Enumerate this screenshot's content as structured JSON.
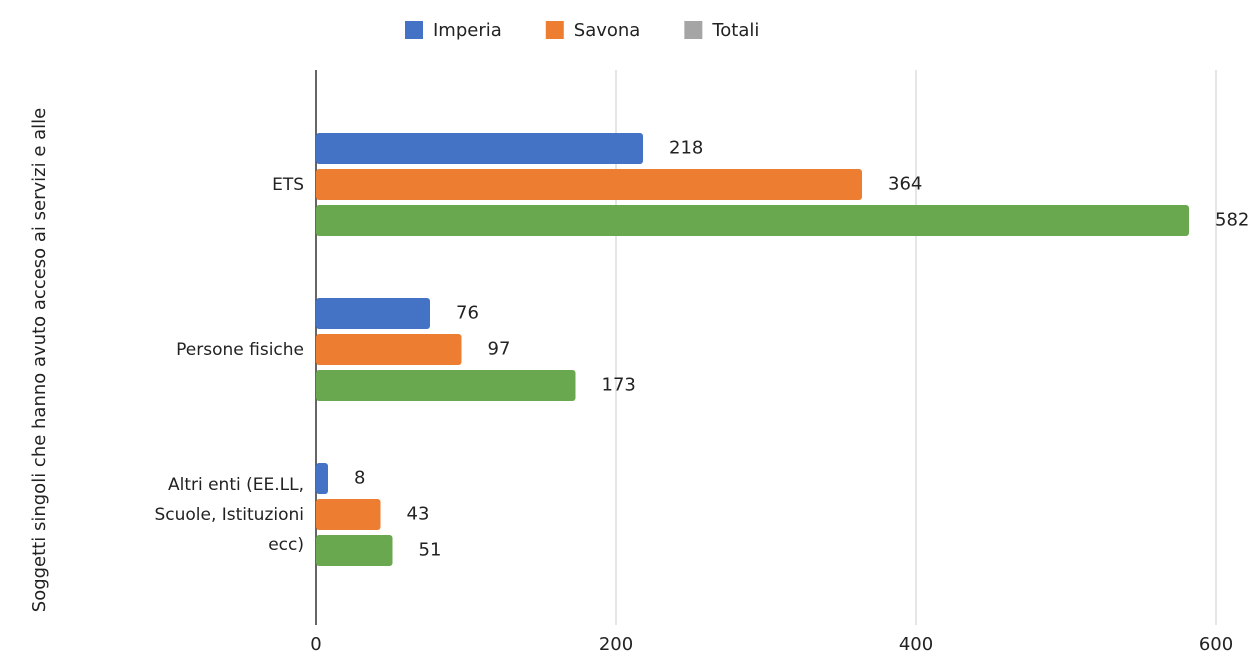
{
  "chart_data": {
    "type": "hbar",
    "y_axis_label": "Soggetti singoli che hanno avuto acceso ai servizi e alle",
    "categories": [
      "ETS",
      "Persone fisiche",
      "Altri enti (EE.LL, Scuole, Istituzioni ecc)"
    ],
    "series": [
      {
        "name": "Imperia",
        "color": "#4472c4",
        "values": [
          218,
          76,
          8
        ]
      },
      {
        "name": "Savona",
        "color": "#ed7d31",
        "values": [
          364,
          97,
          43
        ]
      },
      {
        "name": "Totali",
        "color": "#6aa84f",
        "legend_color": "#a5a5a5",
        "values": [
          582,
          173,
          51
        ]
      }
    ],
    "xlim": [
      0,
      600
    ],
    "xticks": [
      0,
      200,
      400,
      600
    ],
    "grid": true,
    "legend": "top"
  }
}
